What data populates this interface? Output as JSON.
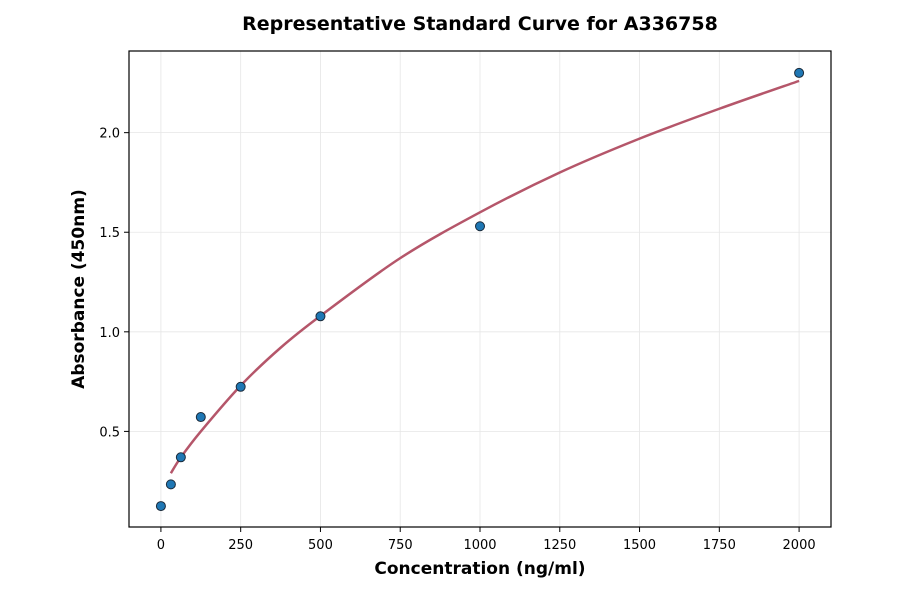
{
  "chart_data": {
    "type": "scatter",
    "title": "Representative Standard Curve for A336758",
    "xlabel": "Concentration (ng/ml)",
    "ylabel": "Absorbance (450nm)",
    "xlim": [
      -100,
      2100
    ],
    "ylim": [
      0.02,
      2.41
    ],
    "xticks": [
      0,
      250,
      500,
      750,
      1000,
      1250,
      1500,
      1750,
      2000
    ],
    "yticks": [
      0.5,
      1.0,
      1.5,
      2.0
    ],
    "ytick_labels": [
      "0.5",
      "1.0",
      "1.5",
      "2.0"
    ],
    "grid": true,
    "points": {
      "x": [
        0,
        31.25,
        62.5,
        125,
        250,
        500,
        1000,
        2000
      ],
      "y": [
        0.125,
        0.234,
        0.37,
        0.572,
        0.724,
        1.078,
        1.53,
        2.3
      ]
    },
    "fit_curve": {
      "x": [
        31.25,
        62.5,
        125,
        250,
        375,
        500,
        750,
        1000,
        1250,
        1500,
        1750,
        2000
      ],
      "y": [
        0.29,
        0.37,
        0.5,
        0.73,
        0.92,
        1.08,
        1.37,
        1.6,
        1.8,
        1.97,
        2.12,
        2.26
      ]
    },
    "colors": {
      "points": "#1f77b4",
      "point_edge": "#1a2a3a",
      "curve": "#b5566a"
    }
  }
}
